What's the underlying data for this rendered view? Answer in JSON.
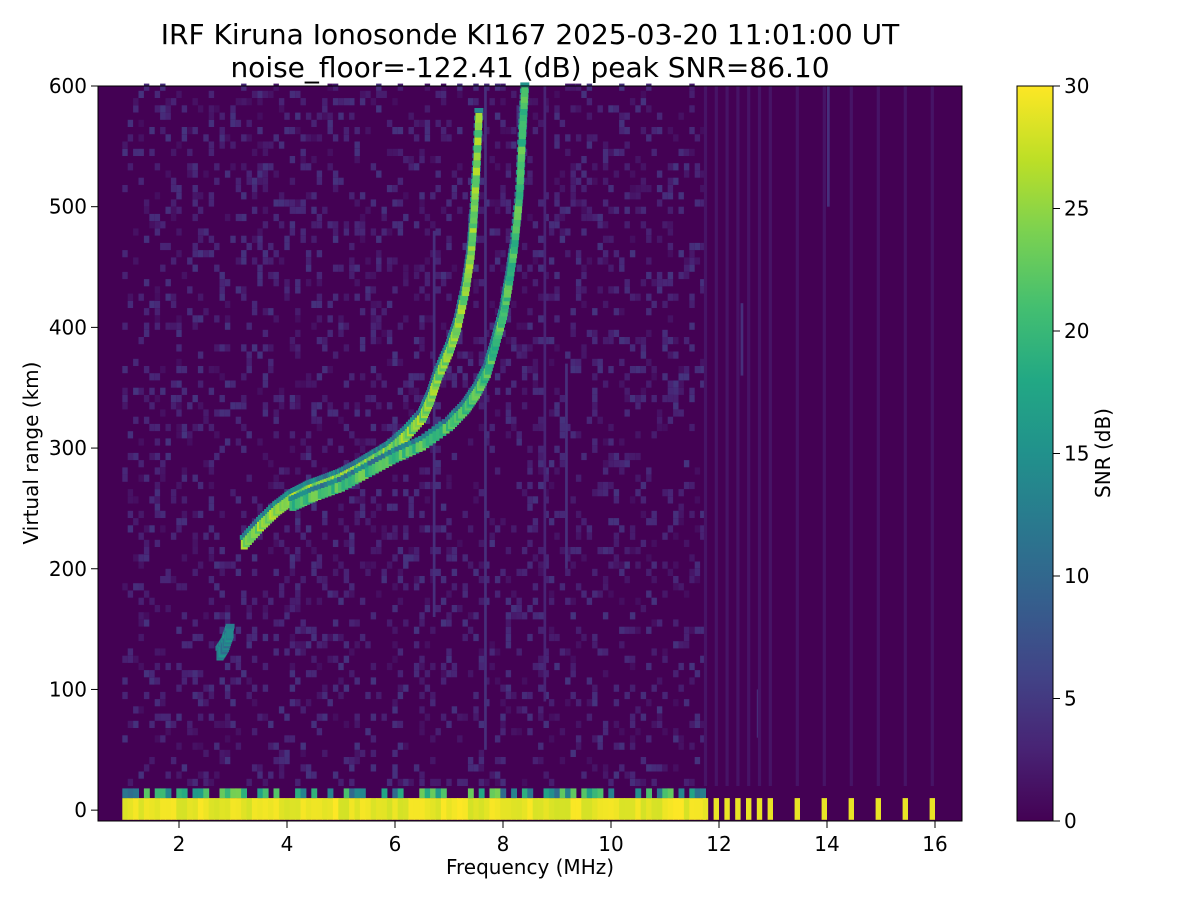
{
  "chart_data": {
    "type": "heatmap",
    "title_line1": "IRF Kiruna Ionosonde KI167 2025-03-20 11:01:00  UT",
    "title_line2": "noise_floor=-122.41 (dB) peak SNR=86.10",
    "xlabel": "Frequency (MHz)",
    "ylabel": "Virtual range (km)",
    "xlim": [
      0.5,
      16.5
    ],
    "ylim": [
      -9,
      600
    ],
    "xticks": [
      2,
      4,
      6,
      8,
      10,
      12,
      14,
      16
    ],
    "yticks": [
      0,
      100,
      200,
      300,
      400,
      500,
      600
    ],
    "colorbar": {
      "label": "SNR (dB)",
      "range": [
        0,
        30
      ],
      "ticks": [
        0,
        5,
        10,
        15,
        20,
        25,
        30
      ],
      "colormap": "viridis"
    },
    "data_start_mhz": 0.95,
    "data_end_mhz": 16.35,
    "traces": [
      {
        "f": [
          2.75,
          2.85,
          2.95
        ],
        "h": [
          128,
          135,
          148
        ],
        "snr": 16
      },
      {
        "f": [
          3.2,
          3.5,
          3.8,
          4.1,
          4.4,
          4.7,
          5.0,
          5.3,
          5.6,
          5.9,
          6.2,
          6.5,
          6.65
        ],
        "h": [
          220,
          235,
          248,
          258,
          265,
          270,
          275,
          282,
          290,
          298,
          310,
          325,
          340
        ],
        "snr": 27
      },
      {
        "f": [
          4.1,
          4.5,
          5.0,
          5.5,
          6.0,
          6.5,
          7.0,
          7.3,
          7.5,
          7.7,
          7.85,
          8.0,
          8.1,
          8.2,
          8.3,
          8.35,
          8.4
        ],
        "h": [
          252,
          260,
          268,
          280,
          292,
          302,
          318,
          332,
          345,
          362,
          385,
          410,
          435,
          465,
          510,
          560,
          600
        ],
        "snr": 24
      },
      {
        "f": [
          6.65,
          6.8,
          7.0,
          7.15,
          7.3,
          7.4,
          7.45,
          7.5,
          7.55
        ],
        "h": [
          340,
          360,
          380,
          400,
          430,
          460,
          490,
          530,
          580
        ],
        "snr": 27
      }
    ],
    "ground_band_khz_gaps": [
      11.75,
      11.95,
      12.15,
      12.35,
      12.55,
      12.75,
      12.95,
      13.45,
      13.95,
      14.45,
      14.95,
      15.45,
      15.95
    ]
  }
}
